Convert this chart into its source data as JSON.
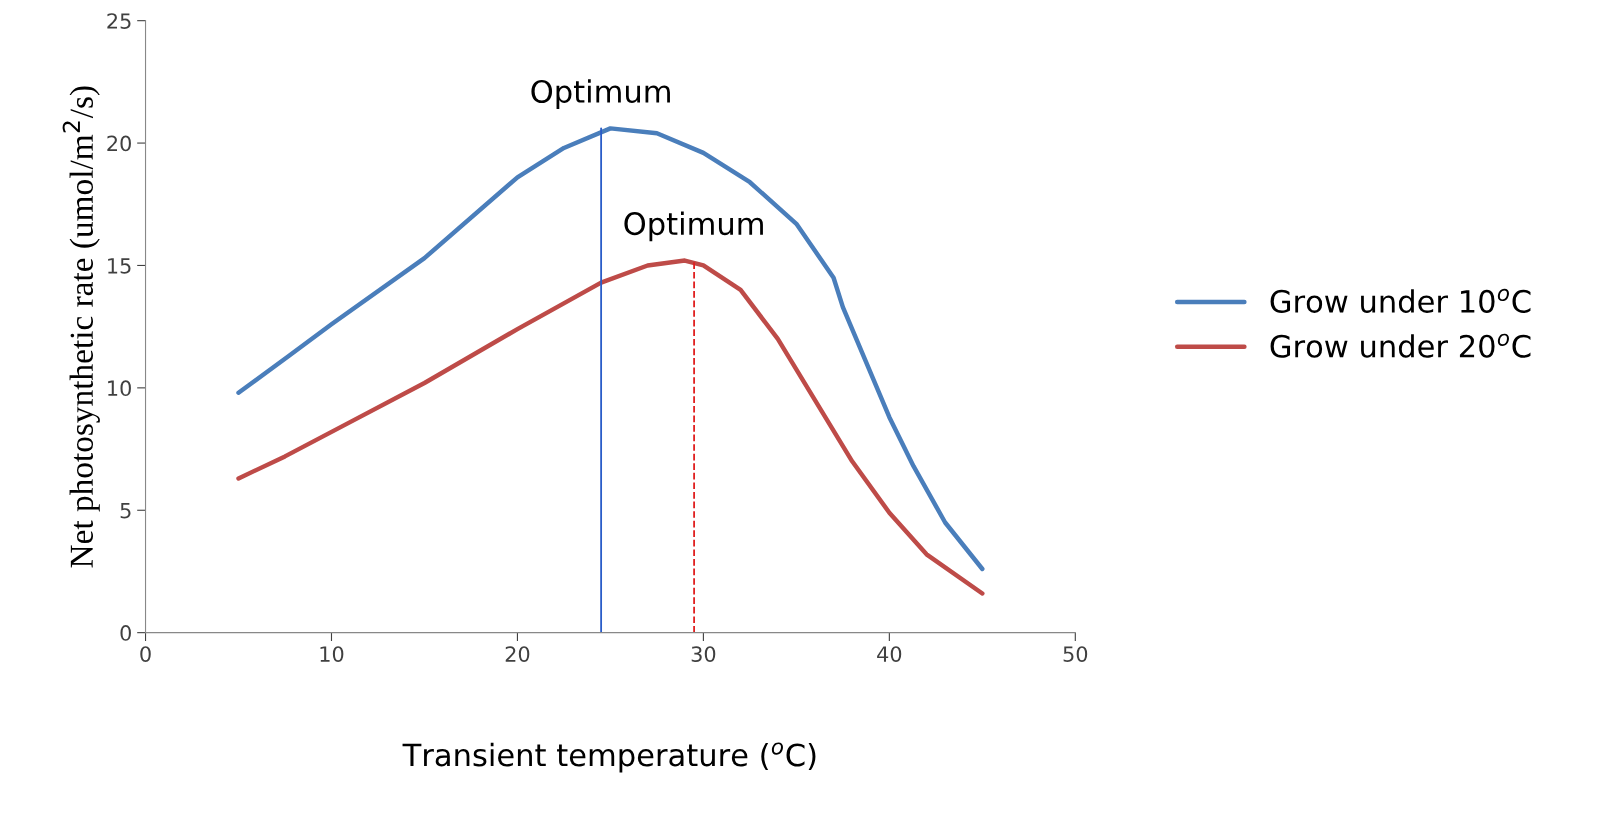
{
  "chart_data": {
    "type": "line",
    "xlabel": "Transient temperature ($^{o}$C)",
    "ylabel": "Net photosynthetic rate (umol/m$^{2}$/s)",
    "xlim": [
      0,
      50
    ],
    "xticks": [
      0,
      10,
      20,
      30,
      40,
      50
    ],
    "ylim": [
      0,
      25
    ],
    "yticks": [
      0,
      5,
      10,
      15,
      20,
      25
    ],
    "grid": false,
    "legend": "right",
    "marker": "none",
    "line_style": "solid",
    "series": [
      {
        "name": "Grow under 10$^{o}$C",
        "color": "#4a7ebb",
        "x": [
          5,
          7.7,
          10,
          15,
          20,
          22.5,
          25,
          27.5,
          30,
          32.5,
          35,
          37,
          37.5,
          40,
          41.3,
          43,
          45
        ],
        "values": [
          9.8,
          11.3,
          12.6,
          15.3,
          18.6,
          19.8,
          20.6,
          20.4,
          19.6,
          18.4,
          16.7,
          14.5,
          13.3,
          8.8,
          6.8,
          4.5,
          2.6
        ]
      },
      {
        "name": "Grow under 20$^{o}$C",
        "color": "#be4b48",
        "x": [
          5,
          7.5,
          11,
          15,
          20,
          24.5,
          27,
          29,
          30,
          32,
          34,
          36,
          38,
          40,
          42,
          45
        ],
        "values": [
          6.3,
          7.2,
          8.6,
          10.2,
          12.4,
          14.3,
          15.0,
          15.2,
          15.0,
          14.0,
          12.0,
          9.5,
          7.0,
          4.9,
          3.2,
          1.6
        ]
      },
      {
        "color": "#2a5cc8",
        "x": [
          24.5,
          24.5
        ],
        "values": [
          0,
          20.6
        ],
        "line_style": "solid"
      },
      {
        "color": "#e02020",
        "x": [
          29.5,
          29.5
        ],
        "values": [
          0,
          15.2
        ],
        "line_style": "dashed"
      }
    ],
    "annotations": [
      {
        "text": "Optimum",
        "x": 24.5,
        "y": 20.6
      },
      {
        "text": "Optimum",
        "x": 29.5,
        "y": 15.2
      }
    ]
  }
}
